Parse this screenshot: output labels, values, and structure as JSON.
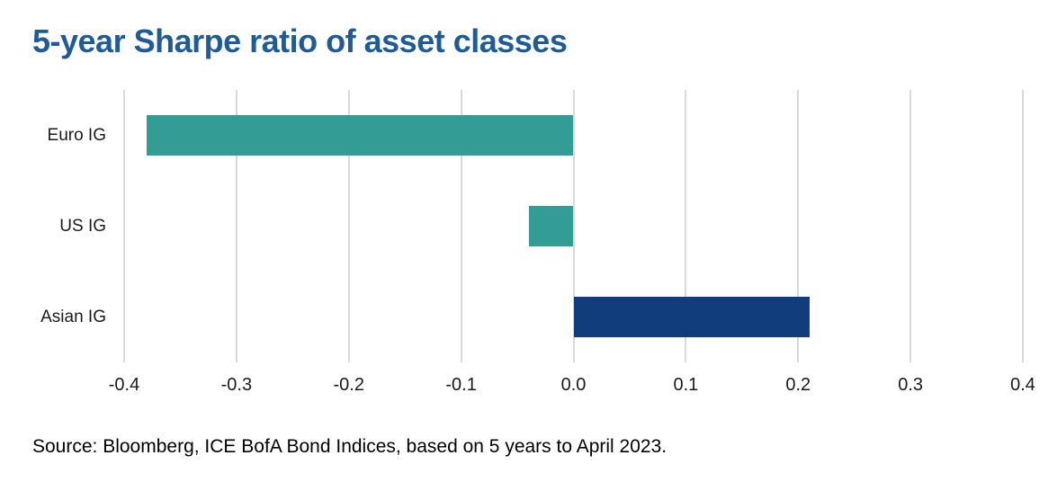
{
  "title": "5-year Sharpe ratio of asset classes",
  "source_note": "Source: Bloomberg, ICE BofA Bond Indices, based on 5 years to April 2023.",
  "colors": {
    "background": "#FFFFFF",
    "title_text": "#1F5C97",
    "axis_text": "#1A1A1A",
    "source_text": "#000000",
    "gridline": "#D9D9D9",
    "teal_bar": "#339C94",
    "navy_bar": "#113D7D"
  },
  "chart_data": {
    "type": "bar",
    "orientation": "horizontal",
    "title": "5-year Sharpe ratio of asset classes",
    "categories": [
      "Euro IG",
      "US IG",
      "Asian IG"
    ],
    "series": [
      {
        "name": "5-year Sharpe ratio",
        "values": [
          -0.38,
          -0.04,
          0.21
        ],
        "colors": [
          "#339C94",
          "#339C94",
          "#113D7D"
        ]
      }
    ],
    "xlabel": "",
    "ylabel": "",
    "xlim": [
      -0.4,
      0.4
    ],
    "x_ticks": [
      -0.4,
      -0.3,
      -0.2,
      -0.1,
      0.0,
      0.1,
      0.2,
      0.3,
      0.4
    ],
    "x_tick_labels": [
      "-0.4",
      "-0.3",
      "-0.2",
      "-0.1",
      "0.0",
      "0.1",
      "0.2",
      "0.3",
      "0.4"
    ],
    "grid": "vertical-only",
    "legend": "none"
  }
}
